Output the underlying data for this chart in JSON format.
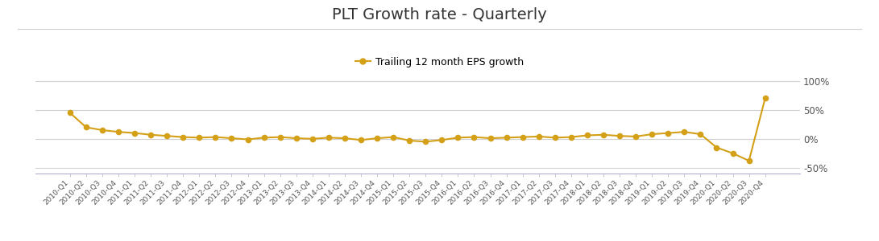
{
  "title": "PLT Growth rate - Quarterly",
  "legend_label": "Trailing 12 month EPS growth",
  "line_color": "#D4A017",
  "marker_color": "#D4A017",
  "background_color": "#ffffff",
  "grid_color": "#d0d0d0",
  "ylim": [
    -60,
    115
  ],
  "yticks": [
    -50,
    0,
    50,
    100
  ],
  "ytick_labels": [
    "-50%",
    "0%",
    "50%",
    "100%"
  ],
  "categories": [
    "2010-Q1",
    "2010-Q2",
    "2010-Q3",
    "2010-Q4",
    "2011-Q1",
    "2011-Q2",
    "2011-Q3",
    "2011-Q4",
    "2012-Q1",
    "2012-Q2",
    "2012-Q3",
    "2012-Q4",
    "2013-Q1",
    "2013-Q2",
    "2013-Q3",
    "2013-Q4",
    "2014-Q1",
    "2014-Q2",
    "2014-Q3",
    "2014-Q4",
    "2015-Q1",
    "2015-Q2",
    "2015-Q3",
    "2015-Q4",
    "2016-Q1",
    "2016-Q2",
    "2016-Q3",
    "2016-Q4",
    "2017-Q1",
    "2017-Q2",
    "2017-Q3",
    "2017-Q4",
    "2018-Q1",
    "2018-Q2",
    "2018-Q3",
    "2018-Q4",
    "2019-Q1",
    "2019-Q2",
    "2019-Q3",
    "2019-Q4",
    "2020-Q1",
    "2020-Q2",
    "2020-Q3",
    "2020-Q4"
  ],
  "values": [
    45,
    20,
    15,
    12,
    10,
    7,
    5,
    3,
    2,
    3,
    1,
    -1,
    2,
    3,
    1,
    0,
    2,
    1,
    -2,
    1,
    3,
    -3,
    -5,
    -2,
    2,
    3,
    1,
    2,
    3,
    4,
    2,
    3,
    6,
    7,
    5,
    4,
    8,
    10,
    12,
    8,
    -15,
    -25,
    -38,
    70
  ],
  "title_fontsize": 14,
  "legend_fontsize": 9,
  "tick_fontsize": 6.5,
  "ytick_fontsize": 8.5
}
